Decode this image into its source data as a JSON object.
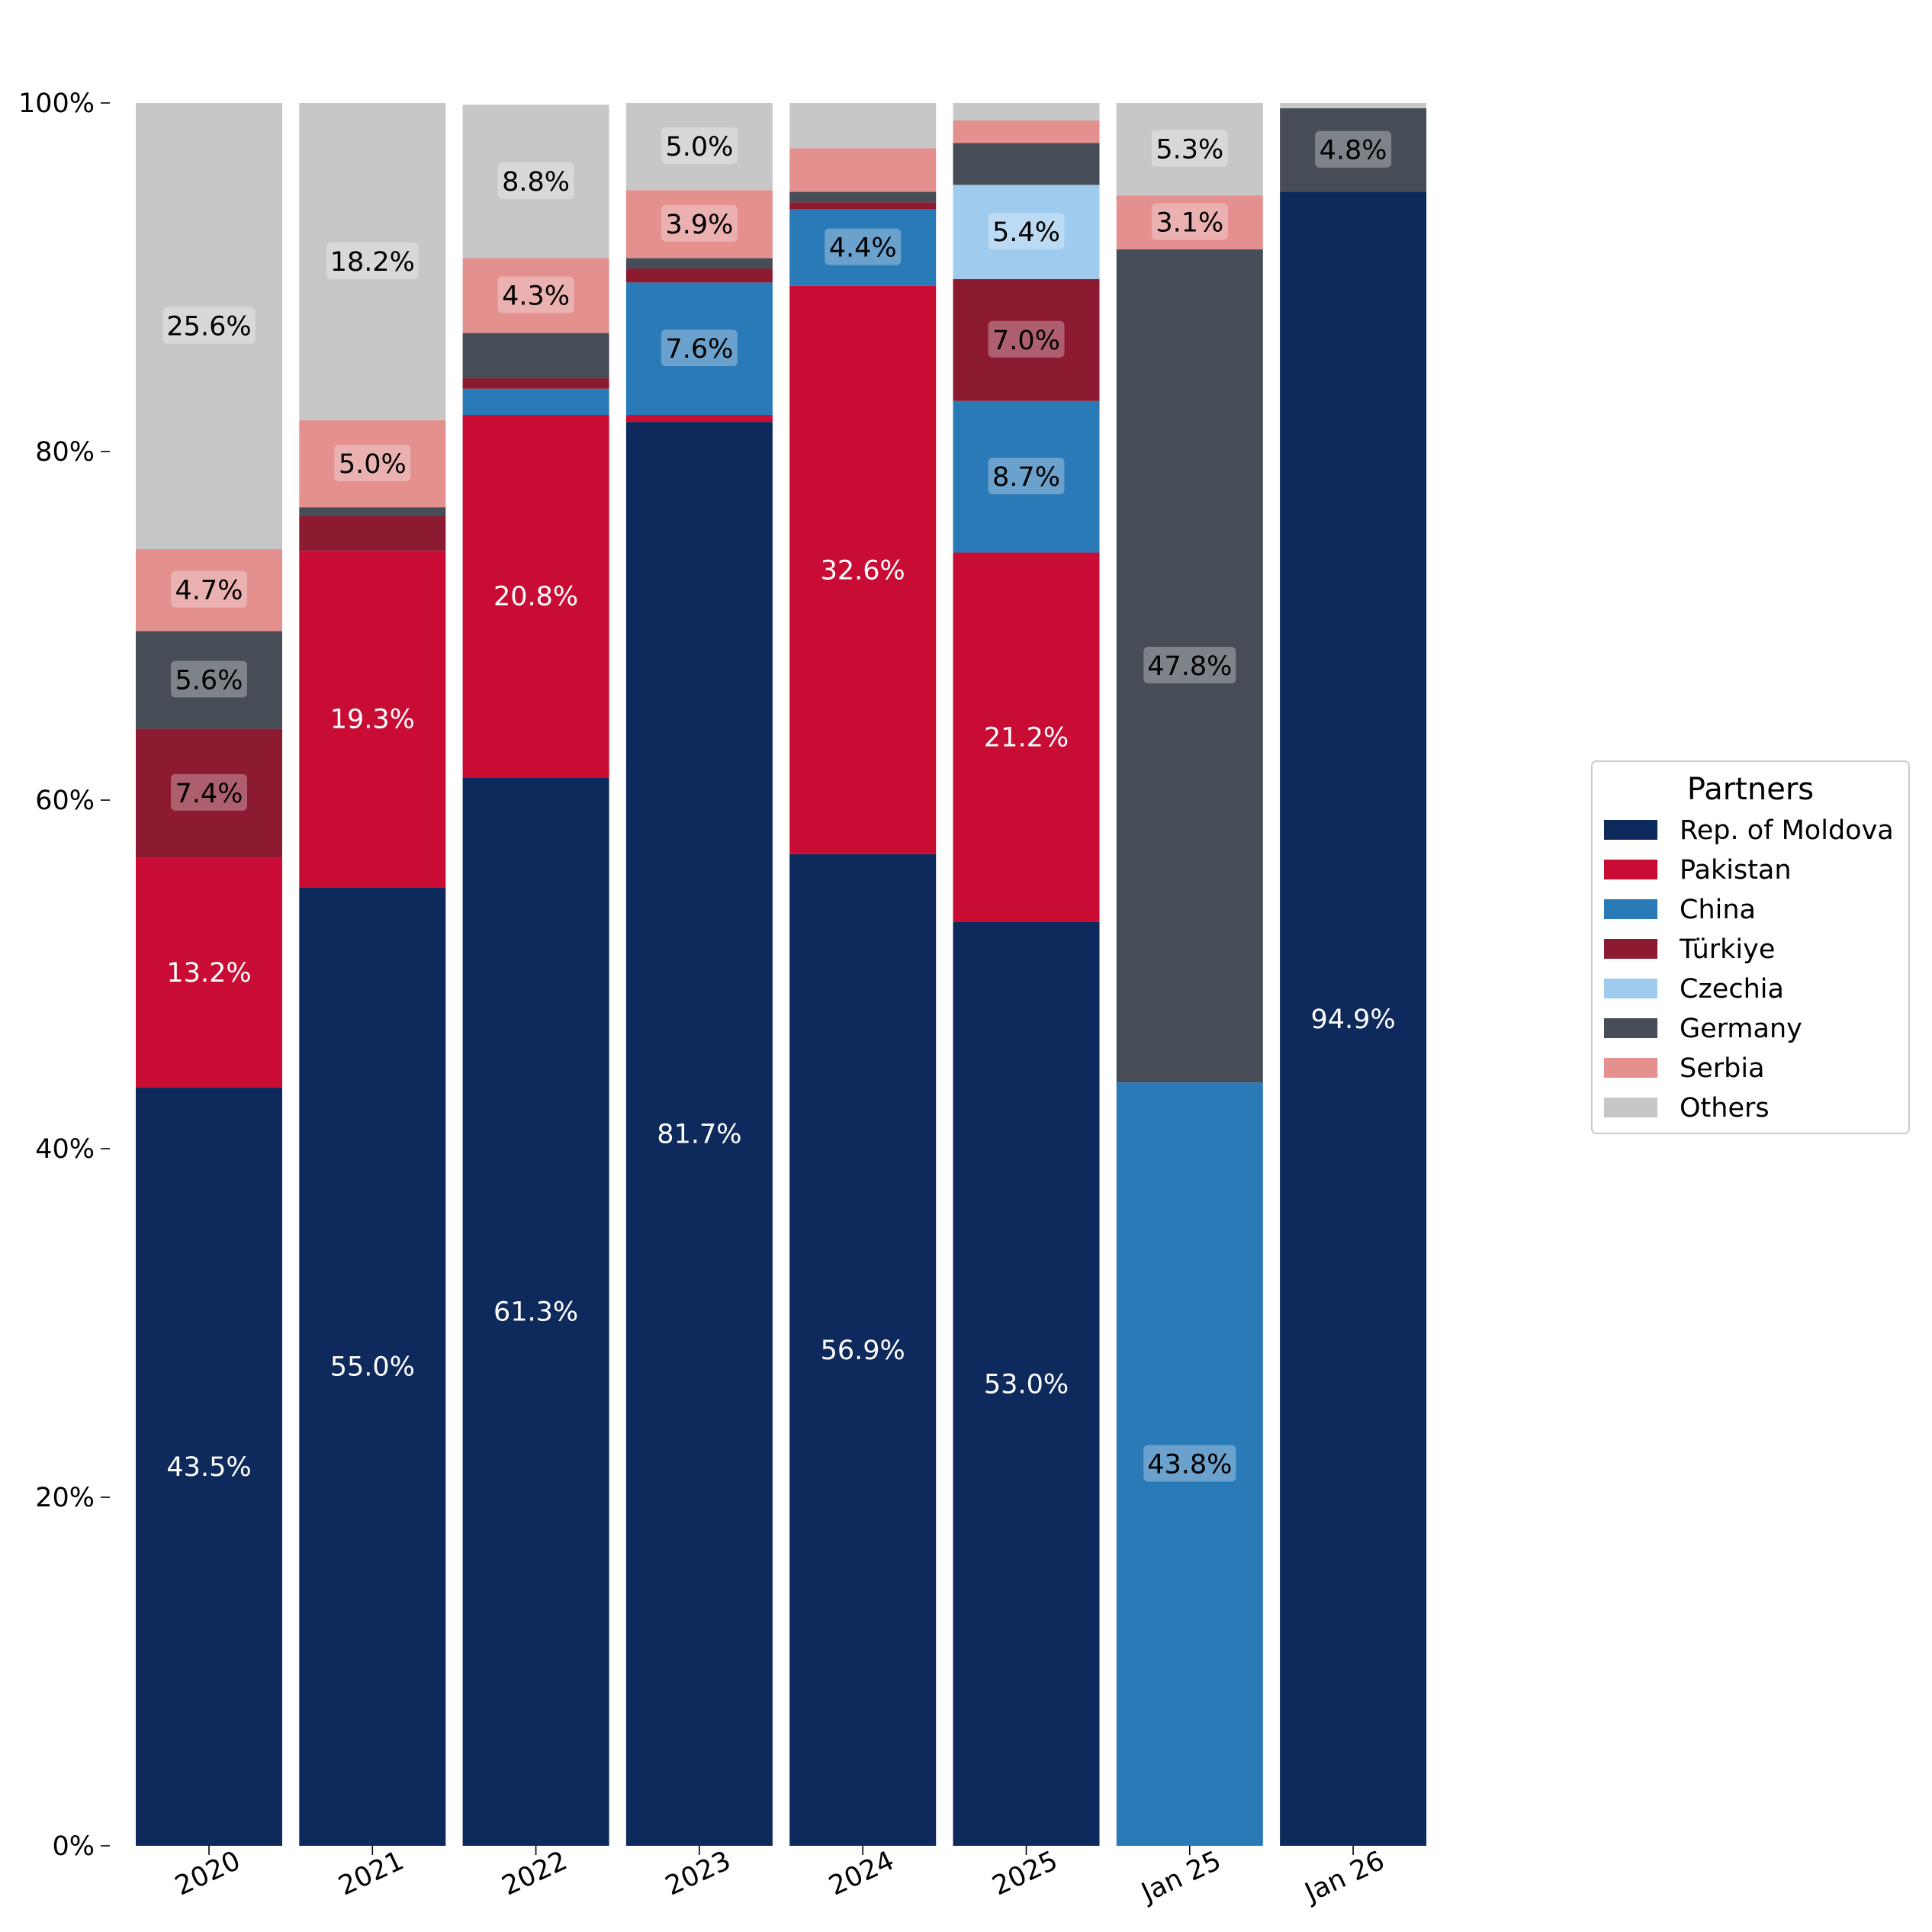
{
  "chart_data": {
    "type": "bar",
    "stacked": true,
    "categories": [
      "2020",
      "2021",
      "2022",
      "2023",
      "2024",
      "2025",
      "Jan 25",
      "Jan 26"
    ],
    "y_ticks": [
      "0%",
      "20%",
      "40%",
      "60%",
      "80%",
      "100%"
    ],
    "ylim": [
      0,
      100
    ],
    "grid": false,
    "legend": {
      "title": "Partners",
      "placement": "center-right"
    },
    "series": [
      {
        "name": "Rep. of Moldova",
        "color": "#0e2a5c",
        "values": [
          43.5,
          55.0,
          61.3,
          81.7,
          56.9,
          53.0,
          0.0,
          94.9
        ]
      },
      {
        "name": "Pakistan",
        "color": "#c90c34",
        "values": [
          13.2,
          19.3,
          20.8,
          0.4,
          32.6,
          21.2,
          0.0,
          0.0
        ]
      },
      {
        "name": "China",
        "color": "#2a7ab8",
        "values": [
          0.0,
          0.0,
          1.5,
          7.6,
          4.4,
          8.7,
          43.8,
          0.0
        ]
      },
      {
        "name": "Türkiye",
        "color": "#8c1a30",
        "values": [
          7.4,
          2.0,
          0.6,
          0.8,
          0.4,
          7.0,
          0.0,
          0.0
        ]
      },
      {
        "name": "Czechia",
        "color": "#9ecbee",
        "values": [
          0.0,
          0.0,
          0.0,
          0.0,
          0.0,
          5.4,
          0.0,
          0.0
        ]
      },
      {
        "name": "Germany",
        "color": "#474d57",
        "values": [
          5.6,
          0.5,
          2.6,
          0.6,
          0.6,
          2.4,
          47.8,
          4.8
        ]
      },
      {
        "name": "Serbia",
        "color": "#e3908e",
        "values": [
          4.7,
          5.0,
          4.3,
          3.9,
          2.5,
          1.3,
          3.1,
          0.0
        ]
      },
      {
        "name": "Others",
        "color": "#c7c7c7",
        "values": [
          25.6,
          18.2,
          8.8,
          5.0,
          2.6,
          1.0,
          5.3,
          0.3
        ]
      }
    ],
    "data_labels": [
      {
        "category": "2020",
        "series": "Rep. of Moldova",
        "text": "43.5%"
      },
      {
        "category": "2020",
        "series": "Pakistan",
        "text": "13.2%"
      },
      {
        "category": "2020",
        "series": "Türkiye",
        "text": "7.4%"
      },
      {
        "category": "2020",
        "series": "Germany",
        "text": "5.6%"
      },
      {
        "category": "2020",
        "series": "Serbia",
        "text": "4.7%"
      },
      {
        "category": "2020",
        "series": "Others",
        "text": "25.6%"
      },
      {
        "category": "2021",
        "series": "Rep. of Moldova",
        "text": "55.0%"
      },
      {
        "category": "2021",
        "series": "Pakistan",
        "text": "19.3%"
      },
      {
        "category": "2021",
        "series": "Serbia",
        "text": "5.0%"
      },
      {
        "category": "2021",
        "series": "Others",
        "text": "18.2%"
      },
      {
        "category": "2022",
        "series": "Rep. of Moldova",
        "text": "61.3%"
      },
      {
        "category": "2022",
        "series": "Pakistan",
        "text": "20.8%"
      },
      {
        "category": "2022",
        "series": "Serbia",
        "text": "4.3%"
      },
      {
        "category": "2022",
        "series": "Others",
        "text": "8.8%"
      },
      {
        "category": "2023",
        "series": "Rep. of Moldova",
        "text": "81.7%"
      },
      {
        "category": "2023",
        "series": "China",
        "text": "7.6%"
      },
      {
        "category": "2023",
        "series": "Serbia",
        "text": "3.9%"
      },
      {
        "category": "2023",
        "series": "Others",
        "text": "5.0%"
      },
      {
        "category": "2024",
        "series": "Rep. of Moldova",
        "text": "56.9%"
      },
      {
        "category": "2024",
        "series": "Pakistan",
        "text": "32.6%"
      },
      {
        "category": "2024",
        "series": "China",
        "text": "4.4%"
      },
      {
        "category": "2025",
        "series": "Rep. of Moldova",
        "text": "53.0%"
      },
      {
        "category": "2025",
        "series": "Pakistan",
        "text": "21.2%"
      },
      {
        "category": "2025",
        "series": "China",
        "text": "8.7%"
      },
      {
        "category": "2025",
        "series": "Türkiye",
        "text": "7.0%"
      },
      {
        "category": "2025",
        "series": "Czechia",
        "text": "5.4%"
      },
      {
        "category": "Jan 25",
        "series": "China",
        "text": "43.8%"
      },
      {
        "category": "Jan 25",
        "series": "Germany",
        "text": "47.8%"
      },
      {
        "category": "Jan 25",
        "series": "Serbia",
        "text": "3.1%"
      },
      {
        "category": "Jan 25",
        "series": "Others",
        "text": "5.3%"
      },
      {
        "category": "Jan 26",
        "series": "Rep. of Moldova",
        "text": "94.9%"
      },
      {
        "category": "Jan 26",
        "series": "Germany",
        "text": "4.8%"
      }
    ]
  }
}
